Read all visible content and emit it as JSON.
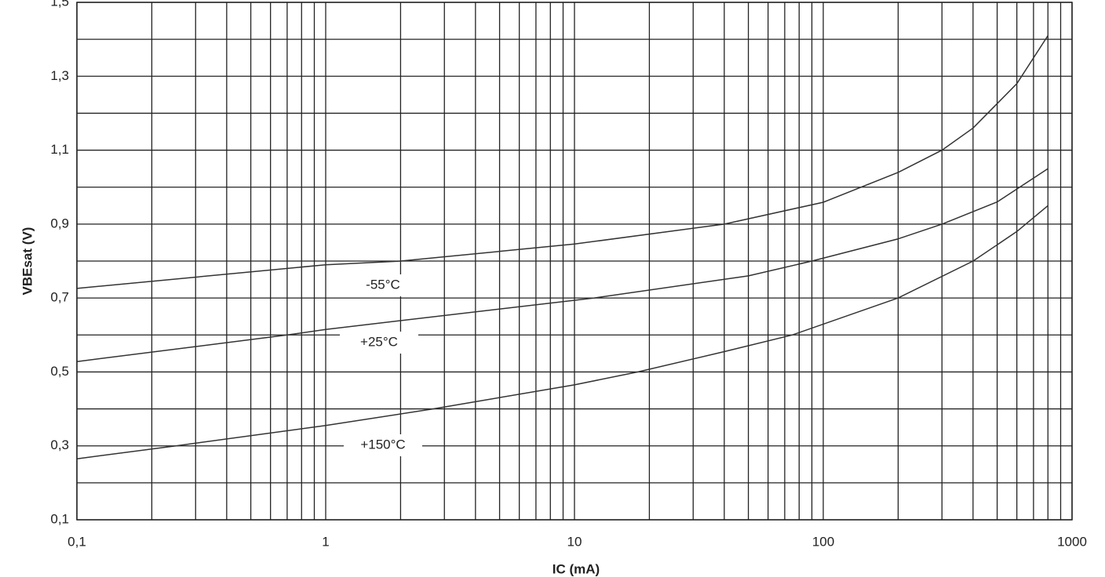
{
  "chart_data": {
    "type": "line",
    "x_label": "IC (mA)",
    "y_label": "VBEsat (V)",
    "xscale": "log",
    "grid": true,
    "xlim": [
      0.1,
      1000
    ],
    "xticks": [
      {
        "value": 0.1,
        "label": "0,1"
      },
      1,
      10,
      100,
      1000
    ],
    "x_minor_ticks": [
      0.2,
      0.3,
      0.4,
      0.5,
      0.6,
      0.7,
      0.8,
      0.9,
      2,
      3,
      4,
      5,
      6,
      7,
      8,
      9,
      20,
      30,
      40,
      50,
      60,
      70,
      80,
      90,
      200,
      300,
      400,
      500,
      600,
      700,
      800,
      900
    ],
    "ylim": [
      0.1,
      1.5
    ],
    "yticks": [
      {
        "value": 0.1,
        "label": "0,1"
      },
      {
        "value": 0.3,
        "label": "0,3"
      },
      {
        "value": 0.5,
        "label": "0,5"
      },
      {
        "value": 0.7,
        "label": "0,7"
      },
      {
        "value": 0.9,
        "label": "0,9"
      },
      {
        "value": 1.1,
        "label": "1,1"
      },
      {
        "value": 1.3,
        "label": "1,3"
      },
      {
        "value": 1.5,
        "label": "1,5"
      }
    ],
    "y_minor_ticks": [
      0.2,
      0.4,
      0.6,
      0.8,
      1.0,
      1.2,
      1.4
    ],
    "series": [
      {
        "name": "-55°C",
        "color": "#333333",
        "x": [
          0.1,
          1,
          2,
          10,
          40,
          100,
          200,
          300,
          400,
          600,
          800
        ],
        "values": [
          0.726,
          0.79,
          0.8,
          0.846,
          0.9,
          0.959,
          1.04,
          1.1,
          1.16,
          1.28,
          1.41
        ]
      },
      {
        "name": "+25°C",
        "color": "#333333",
        "x": [
          0.1,
          0.7,
          1,
          12,
          50,
          90,
          200,
          300,
          500,
          800
        ],
        "values": [
          0.528,
          0.6,
          0.615,
          0.7,
          0.76,
          0.8,
          0.86,
          0.9,
          0.96,
          1.05
        ]
      },
      {
        "name": "+150°C",
        "color": "#333333",
        "x": [
          0.1,
          0.25,
          1,
          2.7,
          10,
          18,
          40,
          75,
          200,
          400,
          600,
          800
        ],
        "values": [
          0.265,
          0.3,
          0.355,
          0.4,
          0.465,
          0.5,
          0.555,
          0.6,
          0.7,
          0.8,
          0.88,
          0.95
        ]
      }
    ]
  }
}
